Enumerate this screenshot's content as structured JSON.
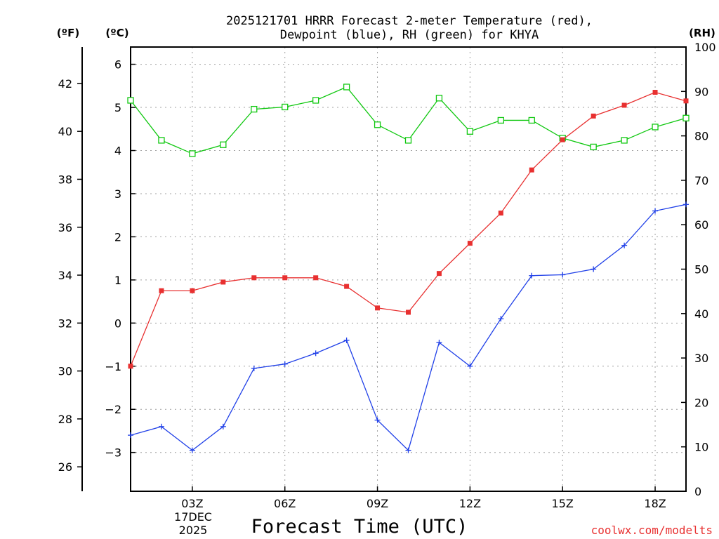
{
  "chart_data": {
    "type": "line",
    "title": "2025121701 HRRR Forecast 2-meter Temperature (red),",
    "subtitle": "Dewpoint (blue), RH (green) for KHYA",
    "xlabel": "Forecast Time (UTC)",
    "credit": "coolwx.com/modelts",
    "date_label": {
      "day": "17DEC",
      "year": "2025"
    },
    "x_hours": [
      1,
      2,
      3,
      4,
      5,
      6,
      7,
      8,
      9,
      10,
      11,
      12,
      13,
      14,
      15,
      16,
      17,
      18,
      19
    ],
    "x_ticks": [
      {
        "hour": 3,
        "label": "03Z"
      },
      {
        "hour": 6,
        "label": "06Z"
      },
      {
        "hour": 9,
        "label": "09Z"
      },
      {
        "hour": 12,
        "label": "12Z"
      },
      {
        "hour": 15,
        "label": "15Z"
      },
      {
        "hour": 18,
        "label": "18Z"
      }
    ],
    "xlim": [
      1,
      19
    ],
    "left_axis_c": {
      "unit": "(ºC)",
      "ylim": [
        -3.9,
        6.4
      ],
      "ticks": [
        -3,
        -2,
        -1,
        0,
        1,
        2,
        3,
        4,
        5,
        6
      ]
    },
    "left_axis_f": {
      "unit": "(ºF)",
      "ticks": [
        26,
        28,
        30,
        32,
        34,
        36,
        38,
        40,
        42
      ]
    },
    "right_axis_rh": {
      "unit": "(RH)",
      "ylim": [
        0,
        100
      ],
      "ticks": [
        0,
        10,
        20,
        30,
        40,
        50,
        60,
        70,
        80,
        90,
        100
      ]
    },
    "colors": {
      "temperature": "#e83030",
      "dewpoint": "#2040e8",
      "rh": "#10c810",
      "grid": "#a0a0a0",
      "credit": "#e83030"
    },
    "series": [
      {
        "name": "Temperature",
        "unit": "C",
        "values": [
          -1.0,
          0.75,
          0.75,
          0.95,
          1.05,
          1.05,
          1.05,
          0.85,
          0.35,
          0.25,
          1.15,
          1.85,
          2.55,
          3.55,
          4.25,
          4.8,
          5.05,
          5.35,
          5.15
        ]
      },
      {
        "name": "Dewpoint",
        "unit": "C",
        "values": [
          -2.6,
          -2.4,
          -2.95,
          -2.4,
          -1.05,
          -0.95,
          -0.7,
          -0.4,
          -2.25,
          -2.95,
          -0.45,
          -1.0,
          0.1,
          1.1,
          1.12,
          1.25,
          1.8,
          2.6,
          2.75
        ]
      },
      {
        "name": "RH",
        "unit": "%",
        "values": [
          88,
          79,
          76,
          78,
          86,
          86.5,
          88,
          91,
          82.5,
          79,
          88.5,
          81,
          83.5,
          83.5,
          79.5,
          77.5,
          79,
          82,
          84
        ]
      }
    ]
  }
}
